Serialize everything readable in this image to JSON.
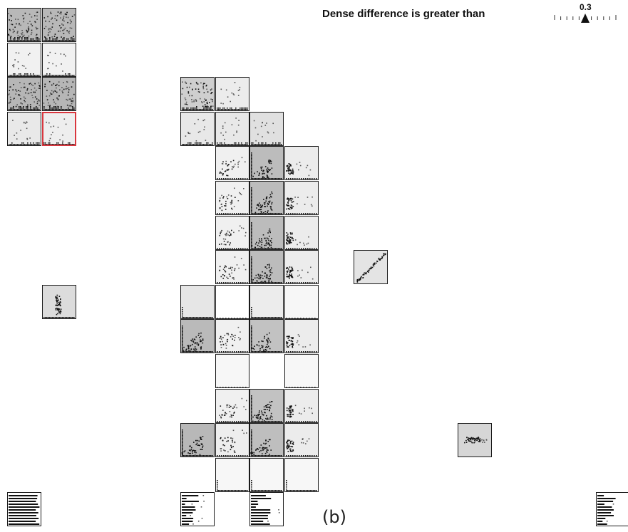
{
  "threshold": {
    "label": "Dense difference is greater than",
    "value": "0.3",
    "fraction": 0.5
  },
  "caption": "(b)",
  "colors": {
    "cell_border": "#1a1a1a",
    "selected_border": "#d9363e",
    "dot": "#111111",
    "dense_bg": "#b5b5b5",
    "light_bg": "#ececec",
    "white_bg": "#ffffff"
  },
  "cells": [
    {
      "id": "a-r1c1",
      "col": 0,
      "row": 0,
      "bg": "#b8b8b8",
      "pattern": "dense-noisy"
    },
    {
      "id": "a-r1c2",
      "col": 1,
      "row": 0,
      "bg": "#b8b8b8",
      "pattern": "dense-noisy"
    },
    {
      "id": "a-r2c1",
      "col": 0,
      "row": 1,
      "bg": "#f1f1f1",
      "pattern": "sparse"
    },
    {
      "id": "a-r2c2",
      "col": 1,
      "row": 1,
      "bg": "#f1f1f1",
      "pattern": "sparse"
    },
    {
      "id": "a-r3c1",
      "col": 0,
      "row": 2,
      "bg": "#b6b6b6",
      "pattern": "dense-noisy"
    },
    {
      "id": "a-r3c2",
      "col": 1,
      "row": 2,
      "bg": "#b6b6b6",
      "pattern": "dense-noisy"
    },
    {
      "id": "a-r4c1",
      "col": 0,
      "row": 3,
      "bg": "#e9e9e9",
      "pattern": "sparse"
    },
    {
      "id": "a-r4c2",
      "col": 1,
      "row": 3,
      "bg": "#eeeeee",
      "pattern": "sparse",
      "selected": true
    },
    {
      "id": "b-r1c1",
      "col": 5,
      "row": 2,
      "bg": "#cfcfcf",
      "pattern": "dense-noisy"
    },
    {
      "id": "b-r1c2",
      "col": 6,
      "row": 2,
      "bg": "#ececec",
      "pattern": "sparse"
    },
    {
      "id": "b-r2c1",
      "col": 5,
      "row": 3,
      "bg": "#e8e8e8",
      "pattern": "sparse"
    },
    {
      "id": "b-r2c2",
      "col": 6,
      "row": 3,
      "bg": "#e8e8e8",
      "pattern": "sparse"
    },
    {
      "id": "b-r2c3",
      "col": 7,
      "row": 3,
      "bg": "#e0e0e0",
      "pattern": "sparse"
    },
    {
      "id": "c-r1c2",
      "col": 6,
      "row": 4,
      "bg": "#f0f0f0",
      "pattern": "cluster"
    },
    {
      "id": "c-r1c3",
      "col": 7,
      "row": 4,
      "bg": "#bcbcbc",
      "pattern": "cluster-dense"
    },
    {
      "id": "c-r1c4",
      "col": 8,
      "row": 4,
      "bg": "#ececec",
      "pattern": "left-cluster"
    },
    {
      "id": "c-r2c2",
      "col": 6,
      "row": 5,
      "bg": "#f0f0f0",
      "pattern": "cluster"
    },
    {
      "id": "c-r2c3",
      "col": 7,
      "row": 5,
      "bg": "#bcbcbc",
      "pattern": "cluster-dense"
    },
    {
      "id": "c-r2c4",
      "col": 8,
      "row": 5,
      "bg": "#ececec",
      "pattern": "left-cluster"
    },
    {
      "id": "c-r3c2",
      "col": 6,
      "row": 6,
      "bg": "#f0f0f0",
      "pattern": "cluster"
    },
    {
      "id": "c-r3c3",
      "col": 7,
      "row": 6,
      "bg": "#bcbcbc",
      "pattern": "cluster-dense"
    },
    {
      "id": "c-r3c4",
      "col": 8,
      "row": 6,
      "bg": "#ececec",
      "pattern": "left-cluster"
    },
    {
      "id": "c-r4c2",
      "col": 6,
      "row": 7,
      "bg": "#f0f0f0",
      "pattern": "cluster"
    },
    {
      "id": "c-r4c3",
      "col": 7,
      "row": 7,
      "bg": "#bcbcbc",
      "pattern": "cluster-dense"
    },
    {
      "id": "c-r4c4",
      "col": 8,
      "row": 7,
      "bg": "#ececec",
      "pattern": "left-cluster"
    },
    {
      "id": "c-r5c1",
      "col": 5,
      "row": 8,
      "bg": "#e6e6e6",
      "pattern": "baseline"
    },
    {
      "id": "c-r5c2",
      "col": 6,
      "row": 8,
      "bg": "#ffffff",
      "pattern": "empty"
    },
    {
      "id": "c-r5c3",
      "col": 7,
      "row": 8,
      "bg": "#ececec",
      "pattern": "baseline"
    },
    {
      "id": "c-r5c4",
      "col": 8,
      "row": 8,
      "bg": "#f7f7f7",
      "pattern": "empty"
    },
    {
      "id": "c-r6c1",
      "col": 5,
      "row": 9,
      "bg": "#bababa",
      "pattern": "cluster-dense"
    },
    {
      "id": "c-r6c2",
      "col": 6,
      "row": 9,
      "bg": "#f0f0f0",
      "pattern": "cluster"
    },
    {
      "id": "c-r6c3",
      "col": 7,
      "row": 9,
      "bg": "#c2c2c2",
      "pattern": "cluster-dense"
    },
    {
      "id": "c-r6c4",
      "col": 8,
      "row": 9,
      "bg": "#ececec",
      "pattern": "left-cluster"
    },
    {
      "id": "c-r7c2",
      "col": 6,
      "row": 10,
      "bg": "#f7f7f7",
      "pattern": "empty"
    },
    {
      "id": "c-r7c4",
      "col": 8,
      "row": 10,
      "bg": "#f7f7f7",
      "pattern": "empty"
    },
    {
      "id": "c-r8c2",
      "col": 6,
      "row": 11,
      "bg": "#f0f0f0",
      "pattern": "cluster"
    },
    {
      "id": "c-r8c3",
      "col": 7,
      "row": 11,
      "bg": "#c2c2c2",
      "pattern": "cluster-dense"
    },
    {
      "id": "c-r8c4",
      "col": 8,
      "row": 11,
      "bg": "#ececec",
      "pattern": "left-cluster"
    },
    {
      "id": "c-r9c1",
      "col": 5,
      "row": 12,
      "bg": "#b8b8b8",
      "pattern": "cluster-dense"
    },
    {
      "id": "c-r9c2",
      "col": 6,
      "row": 12,
      "bg": "#eeeeee",
      "pattern": "cluster"
    },
    {
      "id": "c-r9c3",
      "col": 7,
      "row": 12,
      "bg": "#bebebe",
      "pattern": "cluster-dense"
    },
    {
      "id": "c-r9c4",
      "col": 8,
      "row": 12,
      "bg": "#ececec",
      "pattern": "left-cluster"
    },
    {
      "id": "c-r10c2",
      "col": 6,
      "row": 13,
      "bg": "#f7f7f7",
      "pattern": "baseline"
    },
    {
      "id": "c-r10c3",
      "col": 7,
      "row": 13,
      "bg": "#f7f7f7",
      "pattern": "baseline"
    },
    {
      "id": "c-r10c4",
      "col": 8,
      "row": 13,
      "bg": "#f7f7f7",
      "pattern": "baseline"
    },
    {
      "id": "iso-diagonal",
      "col": 10,
      "row": 7,
      "bg": "#e4e4e4",
      "pattern": "diagonal"
    },
    {
      "id": "iso-blob-left",
      "col": 1,
      "row": 8,
      "bg": "#dcdcdc",
      "pattern": "blob-vertical"
    },
    {
      "id": "iso-blob-right",
      "col": 13,
      "row": 12,
      "bg": "#d6d6d6",
      "pattern": "blob-horizontal"
    },
    {
      "id": "bar-left",
      "col": 0,
      "row": 14,
      "bg": "#ffffff",
      "pattern": "bars-full"
    },
    {
      "id": "bar-mid1",
      "col": 5,
      "row": 14,
      "bg": "#ffffff",
      "pattern": "bars-short"
    },
    {
      "id": "bar-mid2",
      "col": 7,
      "row": 14,
      "bg": "#ffffff",
      "pattern": "bars-medium"
    },
    {
      "id": "bar-right",
      "col": 17,
      "row": 14,
      "bg": "#ffffff",
      "pattern": "bars-short"
    }
  ]
}
